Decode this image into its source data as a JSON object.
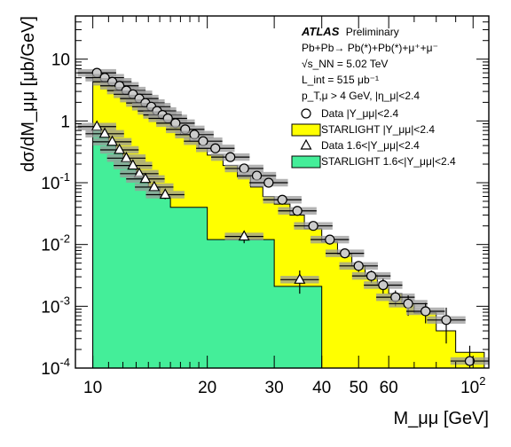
{
  "chart_data": {
    "type": "step",
    "x_scale": "log",
    "y_scale": "log",
    "xlim": [
      9,
      110
    ],
    "ylim": [
      0.0001,
      50
    ],
    "xlabel": "M_μμ [GeV]",
    "ylabel": "dσ/dM_μμ [μb/GeV]",
    "x_ticks": [
      {
        "v": 10,
        "label": "10"
      },
      {
        "v": 20,
        "label": "20"
      },
      {
        "v": 30,
        "label": "30"
      },
      {
        "v": 40,
        "label": "40"
      },
      {
        "v": 50,
        "label": "50"
      },
      {
        "v": 60,
        "label": "60"
      },
      {
        "v": 100,
        "label": "10",
        "exp": "2"
      }
    ],
    "y_ticks": [
      {
        "v": 0.0001,
        "label": "10",
        "exp": "-4"
      },
      {
        "v": 0.001,
        "label": "10",
        "exp": "-3"
      },
      {
        "v": 0.01,
        "label": "10",
        "exp": "-2"
      },
      {
        "v": 0.1,
        "label": "10",
        "exp": "-1"
      },
      {
        "v": 1,
        "label": "1",
        "exp": ""
      },
      {
        "v": 10,
        "label": "10",
        "exp": ""
      }
    ],
    "annotation": {
      "experiment": "ATLAS",
      "status": "Preliminary",
      "process": "Pb+Pb→ Pb(*)+Pb(*)+μ⁺+μ⁻",
      "energy": "√s_NN = 5.02 TeV",
      "luminosity": "L_int = 515 μb⁻¹",
      "cuts": "p_T,μ > 4 GeV, |η_μ|<2.4"
    },
    "series": [
      {
        "name": "STARLIGHT |Y_μμ|<2.4",
        "kind": "histogram",
        "color": "#ffff00",
        "edges": [
          10,
          10.5,
          11,
          11.5,
          12,
          12.5,
          13,
          13.5,
          14,
          14.5,
          15,
          15.5,
          16,
          17,
          18,
          19,
          20,
          22,
          24,
          26,
          28,
          30,
          33,
          36,
          40,
          44,
          48,
          52,
          56,
          60,
          65,
          70,
          80,
          90,
          107
        ],
        "values": [
          6.0,
          4.9,
          4.2,
          3.55,
          3.0,
          2.55,
          2.2,
          1.85,
          1.6,
          1.35,
          1.15,
          1.0,
          0.8,
          0.6,
          0.47,
          0.36,
          0.28,
          0.19,
          0.125,
          0.085,
          0.06,
          0.045,
          0.03,
          0.018,
          0.011,
          0.007,
          0.0045,
          0.0032,
          0.0022,
          0.0016,
          0.0011,
          0.00078,
          0.0004,
          0.00018
        ]
      },
      {
        "name": "STARLIGHT 1.6<|Y_μμ|<2.4",
        "kind": "histogram",
        "color": "#44ee99",
        "edges": [
          10,
          10.5,
          11,
          11.5,
          12,
          12.5,
          13,
          13.5,
          14,
          15,
          16,
          20,
          30,
          40
        ],
        "values": [
          0.72,
          0.55,
          0.42,
          0.32,
          0.24,
          0.18,
          0.14,
          0.105,
          0.085,
          0.06,
          0.04,
          0.012,
          0.0021
        ]
      },
      {
        "name": "Data |Y_μμ|<2.4",
        "kind": "points",
        "marker": "circle",
        "x": [
          10.25,
          10.75,
          11.25,
          11.75,
          12.25,
          12.75,
          13.25,
          13.75,
          14.25,
          14.75,
          15.25,
          15.75,
          16.5,
          17.5,
          18.5,
          19.5,
          21,
          23,
          25,
          27,
          29,
          31.5,
          34.5,
          38,
          42,
          46,
          50,
          54,
          58,
          62.5,
          67.5,
          75,
          85,
          98
        ],
        "y": [
          6.0,
          5.0,
          4.3,
          3.7,
          3.1,
          2.7,
          2.3,
          1.95,
          1.7,
          1.45,
          1.25,
          1.1,
          0.92,
          0.73,
          0.6,
          0.47,
          0.36,
          0.26,
          0.17,
          0.13,
          0.1,
          0.053,
          0.035,
          0.02,
          0.012,
          0.0072,
          0.0045,
          0.0031,
          0.0022,
          0.0014,
          0.0011,
          0.00083,
          0.0006,
          0.00013
        ],
        "y_err": [
          0.3,
          0.25,
          0.2,
          0.18,
          0.15,
          0.13,
          0.12,
          0.1,
          0.09,
          0.08,
          0.07,
          0.06,
          0.05,
          0.04,
          0.035,
          0.03,
          0.025,
          0.02,
          0.015,
          0.011,
          0.008,
          0.006,
          0.004,
          0.003,
          0.002,
          0.0012,
          0.0009,
          0.0007,
          0.0006,
          0.0004,
          0.0004,
          0.0003,
          0.00035,
          0.0001
        ]
      },
      {
        "name": "Data 1.6<|Y_μμ|<2.4",
        "kind": "points",
        "marker": "triangle",
        "x": [
          10.25,
          10.75,
          11.25,
          11.75,
          12.25,
          12.75,
          13.25,
          13.75,
          14.5,
          15.5,
          25,
          35
        ],
        "y": [
          0.81,
          0.62,
          0.46,
          0.34,
          0.25,
          0.19,
          0.14,
          0.115,
          0.085,
          0.064,
          0.0135,
          0.0027
        ],
        "y_err": [
          0.08,
          0.06,
          0.05,
          0.04,
          0.03,
          0.025,
          0.02,
          0.015,
          0.012,
          0.01,
          0.003,
          0.0011
        ]
      }
    ]
  }
}
